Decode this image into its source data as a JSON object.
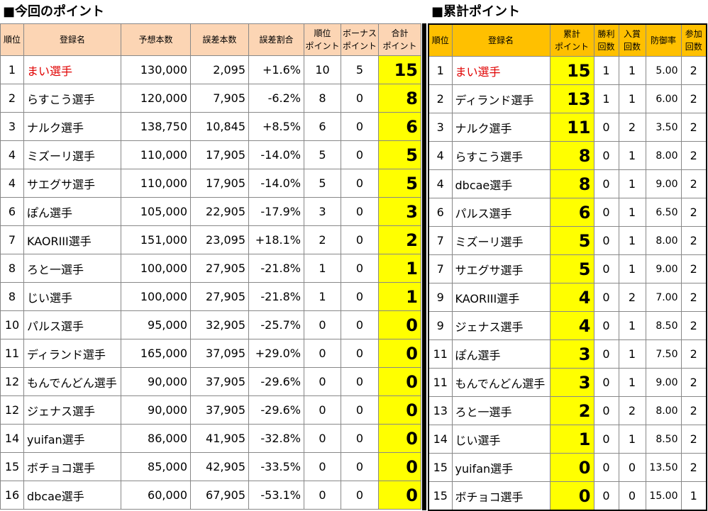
{
  "left": {
    "title": "■今回のポイント",
    "headers": [
      [
        "順位"
      ],
      [
        "登録名"
      ],
      [
        "予想本数"
      ],
      [
        "誤差本数"
      ],
      [
        "誤差割合"
      ],
      [
        "順位",
        "ポイント"
      ],
      [
        "ボーナス",
        "ポイント"
      ],
      [
        "合計",
        "ポイント"
      ]
    ],
    "rows": [
      [
        "1",
        "まい選手",
        "130,000",
        "2,095",
        "+1.6%",
        "10",
        "5",
        "15"
      ],
      [
        "2",
        "らすこう選手",
        "120,000",
        "7,905",
        "-6.2%",
        "8",
        "0",
        "8"
      ],
      [
        "3",
        "ナルク選手",
        "138,750",
        "10,845",
        "+8.5%",
        "6",
        "0",
        "6"
      ],
      [
        "4",
        "ミズーリ選手",
        "110,000",
        "17,905",
        "-14.0%",
        "5",
        "0",
        "5"
      ],
      [
        "4",
        "サエグサ選手",
        "110,000",
        "17,905",
        "-14.0%",
        "5",
        "0",
        "5"
      ],
      [
        "6",
        "ぽん選手",
        "105,000",
        "22,905",
        "-17.9%",
        "3",
        "0",
        "3"
      ],
      [
        "7",
        "KAORIII選手",
        "151,000",
        "23,095",
        "+18.1%",
        "2",
        "0",
        "2"
      ],
      [
        "8",
        "ろと一選手",
        "100,000",
        "27,905",
        "-21.8%",
        "1",
        "0",
        "1"
      ],
      [
        "8",
        "じい選手",
        "100,000",
        "27,905",
        "-21.8%",
        "1",
        "0",
        "1"
      ],
      [
        "10",
        "パルス選手",
        "95,000",
        "32,905",
        "-25.7%",
        "0",
        "0",
        "0"
      ],
      [
        "11",
        "ディランド選手",
        "165,000",
        "37,095",
        "+29.0%",
        "0",
        "0",
        "0"
      ],
      [
        "12",
        "もんでんどん選手",
        "90,000",
        "37,905",
        "-29.6%",
        "0",
        "0",
        "0"
      ],
      [
        "12",
        "ジェナス選手",
        "90,000",
        "37,905",
        "-29.6%",
        "0",
        "0",
        "0"
      ],
      [
        "14",
        "yuifan選手",
        "86,000",
        "41,905",
        "-32.8%",
        "0",
        "0",
        "0"
      ],
      [
        "15",
        "ボチョコ選手",
        "85,000",
        "42,905",
        "-33.5%",
        "0",
        "0",
        "0"
      ],
      [
        "16",
        "dbcae選手",
        "60,000",
        "67,905",
        "-53.1%",
        "0",
        "0",
        "0"
      ]
    ]
  },
  "right": {
    "title": "■累計ポイント",
    "headers": [
      [
        "順位"
      ],
      [
        "登録名"
      ],
      [
        "累計",
        "ポイント"
      ],
      [
        "勝利",
        "回数"
      ],
      [
        "入賞",
        "回数"
      ],
      [
        "防御率"
      ],
      [
        "参加",
        "回数"
      ]
    ],
    "rows": [
      [
        "1",
        "まい選手",
        "15",
        "1",
        "1",
        "5.00",
        "2"
      ],
      [
        "2",
        "ディランド選手",
        "13",
        "1",
        "1",
        "6.00",
        "2"
      ],
      [
        "3",
        "ナルク選手",
        "11",
        "0",
        "2",
        "3.50",
        "2"
      ],
      [
        "4",
        "らすこう選手",
        "8",
        "0",
        "1",
        "8.00",
        "2"
      ],
      [
        "4",
        "dbcae選手",
        "8",
        "0",
        "1",
        "9.00",
        "2"
      ],
      [
        "6",
        "パルス選手",
        "6",
        "0",
        "1",
        "6.50",
        "2"
      ],
      [
        "7",
        "ミズーリ選手",
        "5",
        "0",
        "1",
        "8.00",
        "2"
      ],
      [
        "7",
        "サエグサ選手",
        "5",
        "0",
        "1",
        "9.00",
        "2"
      ],
      [
        "9",
        "KAORIII選手",
        "4",
        "0",
        "2",
        "7.00",
        "2"
      ],
      [
        "9",
        "ジェナス選手",
        "4",
        "0",
        "1",
        "8.50",
        "2"
      ],
      [
        "11",
        "ぽん選手",
        "3",
        "0",
        "1",
        "7.50",
        "2"
      ],
      [
        "11",
        "もんでんどん選手",
        "3",
        "0",
        "1",
        "9.00",
        "2"
      ],
      [
        "13",
        "ろと一選手",
        "2",
        "0",
        "2",
        "8.00",
        "2"
      ],
      [
        "14",
        "じい選手",
        "1",
        "0",
        "1",
        "8.50",
        "2"
      ],
      [
        "15",
        "yuifan選手",
        "0",
        "0",
        "0",
        "13.50",
        "2"
      ],
      [
        "15",
        "ボチョコ選手",
        "0",
        "0",
        "0",
        "15.00",
        "1"
      ]
    ]
  }
}
